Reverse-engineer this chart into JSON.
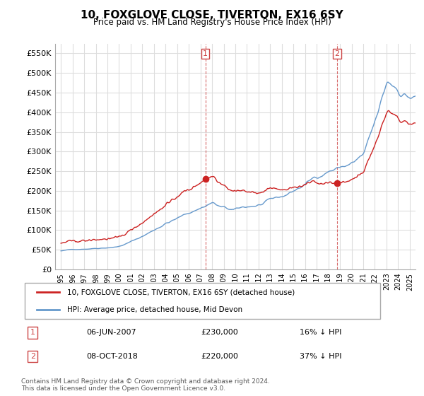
{
  "title": "10, FOXGLOVE CLOSE, TIVERTON, EX16 6SY",
  "subtitle": "Price paid vs. HM Land Registry's House Price Index (HPI)",
  "ylabel": "",
  "xlabel": "",
  "ylim": [
    0,
    575000
  ],
  "yticks": [
    0,
    50000,
    100000,
    150000,
    200000,
    250000,
    300000,
    350000,
    400000,
    450000,
    500000,
    550000
  ],
  "ytick_labels": [
    "£0",
    "£50K",
    "£100K",
    "£150K",
    "£200K",
    "£250K",
    "£300K",
    "£350K",
    "£400K",
    "£450K",
    "£500K",
    "£550K"
  ],
  "hpi_color": "#6699cc",
  "price_color": "#cc2222",
  "vline_color": "#cc4444",
  "marker1_date_idx": 146,
  "marker2_date_idx": 282,
  "annotation1": {
    "label": "1",
    "date": "06-JUN-2007",
    "price": "£230,000",
    "pct": "16% ↓ HPI"
  },
  "annotation2": {
    "label": "2",
    "date": "08-OCT-2018",
    "price": "£220,000",
    "pct": "37% ↓ HPI"
  },
  "legend1": "10, FOXGLOVE CLOSE, TIVERTON, EX16 6SY (detached house)",
  "legend2": "HPI: Average price, detached house, Mid Devon",
  "footer": "Contains HM Land Registry data © Crown copyright and database right 2024.\nThis data is licensed under the Open Government Licence v3.0.",
  "background_color": "#ffffff",
  "plot_bg_color": "#ffffff",
  "grid_color": "#dddddd"
}
